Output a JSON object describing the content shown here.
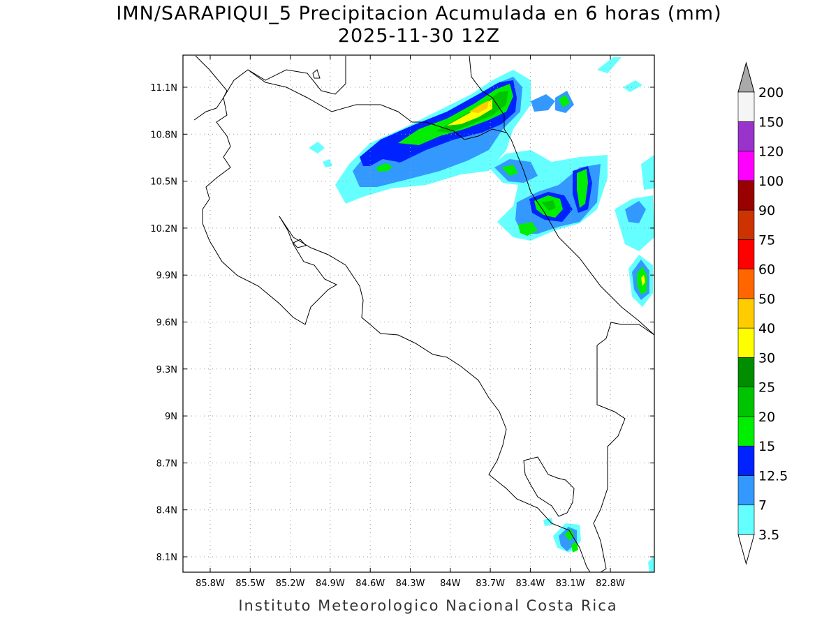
{
  "title": {
    "line1": "IMN/SARAPIQUI_5 Precipitacion Acumulada en 6 horas (mm)",
    "line2": "2025-11-30 12Z"
  },
  "footer": "Instituto Meteorologico Nacional Costa Rica",
  "axes": {
    "lon_ticks": [
      "85.8W",
      "85.5W",
      "85.2W",
      "84.9W",
      "84.6W",
      "84.3W",
      "84W",
      "83.7W",
      "83.4W",
      "83.1W",
      "82.8W"
    ],
    "lat_ticks": [
      "11.1N",
      "10.8N",
      "10.5N",
      "10.2N",
      "9.9N",
      "9.6N",
      "9.3N",
      "9N",
      "8.7N",
      "8.4N",
      "8.1N"
    ],
    "grid": "dotted"
  },
  "legend": {
    "placement": "right",
    "levels": [
      {
        "label": "3.5",
        "color": "#66ffff"
      },
      {
        "label": "7",
        "color": "#3399ff"
      },
      {
        "label": "12.5",
        "color": "#0022ff"
      },
      {
        "label": "15",
        "color": "#00ee00"
      },
      {
        "label": "20",
        "color": "#00c400"
      },
      {
        "label": "25",
        "color": "#008e00"
      },
      {
        "label": "30",
        "color": "#ffff00"
      },
      {
        "label": "40",
        "color": "#ffcc00"
      },
      {
        "label": "50",
        "color": "#ff6600"
      },
      {
        "label": "60",
        "color": "#ff0000"
      },
      {
        "label": "75",
        "color": "#cc3300"
      },
      {
        "label": "90",
        "color": "#990000"
      },
      {
        "label": "100",
        "color": "#ff00ff"
      },
      {
        "label": "120",
        "color": "#9933cc"
      },
      {
        "label": "150",
        "color": "#f5f5f5"
      },
      {
        "label": "200",
        "color": "#aaaaaa"
      }
    ]
  }
}
